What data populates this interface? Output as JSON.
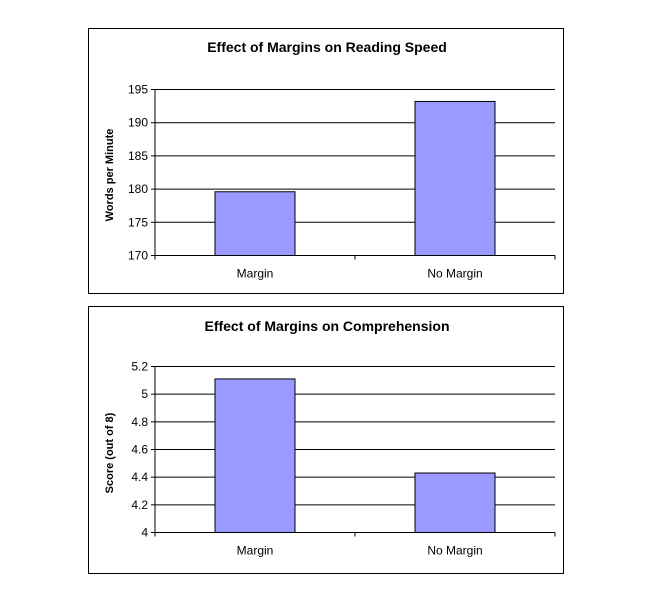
{
  "chart_data": [
    {
      "type": "bar",
      "title": "Effect of Margins on Reading Speed",
      "xlabel": "",
      "ylabel": "Words per Minute",
      "categories": [
        "Margin",
        "No Margin"
      ],
      "values": [
        179.6,
        193.2
      ],
      "ylim": [
        170,
        195
      ],
      "yticks": [
        "170",
        "175",
        "180",
        "185",
        "190",
        "195"
      ],
      "grid": true,
      "legend": "none",
      "bar_color": "#9999ff"
    },
    {
      "type": "bar",
      "title": "Effect of Margins on Comprehension",
      "xlabel": "",
      "ylabel": "Score (out of 8)",
      "categories": [
        "Margin",
        "No Margin"
      ],
      "values": [
        5.11,
        4.43
      ],
      "ylim": [
        4,
        5.2
      ],
      "yticks": [
        "4",
        "4.2",
        "4.4",
        "4.6",
        "4.8",
        "5",
        "5.2"
      ],
      "grid": true,
      "legend": "none",
      "bar_color": "#9999ff"
    }
  ]
}
